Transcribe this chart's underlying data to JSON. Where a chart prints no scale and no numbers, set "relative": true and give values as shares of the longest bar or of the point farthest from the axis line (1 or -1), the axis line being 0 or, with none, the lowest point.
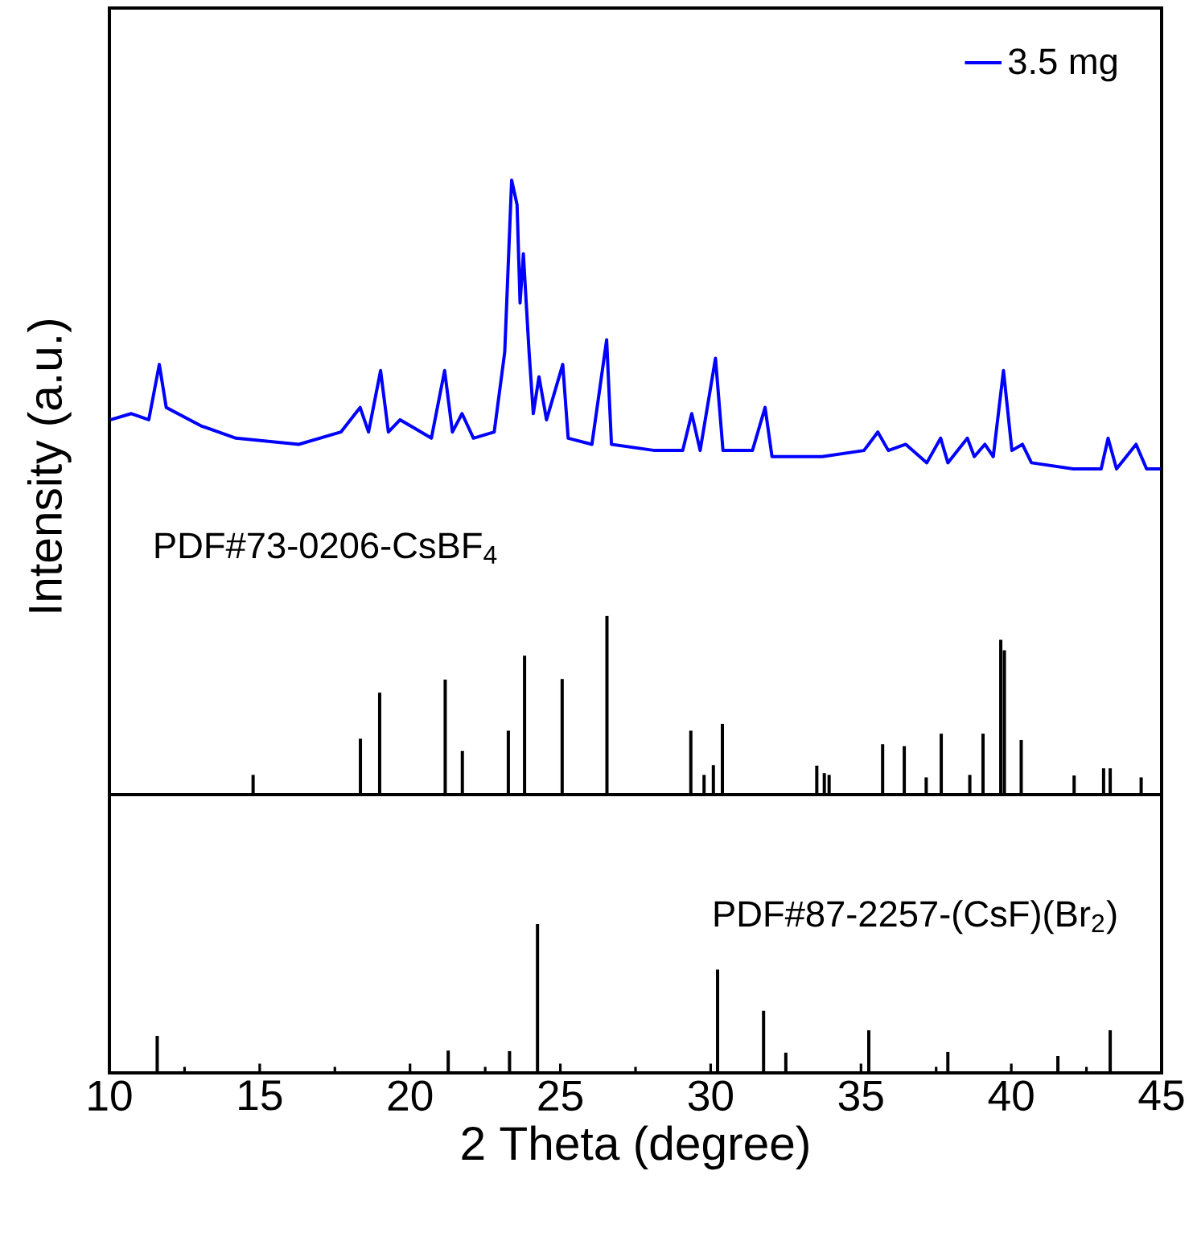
{
  "chart_data": [
    {
      "type": "line",
      "relative": true,
      "xlim": [
        10,
        45
      ],
      "tick_labels": false,
      "ylabel": "Intensity (a.u.)",
      "legend": "top right",
      "series": [
        {
          "name": "3.5 mg",
          "type": "line",
          "color": "#0000ff",
          "x": [
            10.04,
            10.73,
            11.31,
            11.66,
            11.89,
            13.05,
            14.21,
            16.3,
            17.7,
            18.34,
            18.62,
            19.02,
            19.28,
            19.67,
            20.71,
            21.15,
            21.41,
            21.73,
            22.11,
            22.8,
            23.15,
            23.38,
            23.56,
            23.66,
            23.77,
            23.96,
            24.1,
            24.29,
            24.54,
            25.08,
            25.26,
            26.05,
            26.54,
            26.7,
            28.14,
            29.07,
            29.37,
            29.65,
            30.16,
            30.41,
            31.39,
            31.81,
            32.04,
            33.71,
            35.1,
            35.56,
            35.91,
            36.49,
            37.19,
            37.65,
            37.89,
            38.54,
            38.77,
            39.12,
            39.4,
            39.74,
            40.02,
            40.37,
            40.67,
            42.06,
            42.99,
            43.22,
            43.5,
            44.15,
            44.5,
            44.96
          ],
          "values": [
            0.61,
            0.62,
            0.61,
            0.7,
            0.63,
            0.6,
            0.58,
            0.57,
            0.59,
            0.63,
            0.59,
            0.69,
            0.59,
            0.61,
            0.58,
            0.69,
            0.59,
            0.62,
            0.58,
            0.59,
            0.72,
            1.0,
            0.96,
            0.8,
            0.88,
            0.72,
            0.62,
            0.68,
            0.61,
            0.7,
            0.58,
            0.57,
            0.74,
            0.57,
            0.56,
            0.56,
            0.62,
            0.56,
            0.71,
            0.56,
            0.56,
            0.63,
            0.55,
            0.55,
            0.56,
            0.59,
            0.56,
            0.57,
            0.54,
            0.58,
            0.54,
            0.58,
            0.55,
            0.57,
            0.55,
            0.69,
            0.56,
            0.57,
            0.54,
            0.53,
            0.53,
            0.58,
            0.53,
            0.57,
            0.53,
            0.53
          ]
        },
        {
          "name": "PDF#73-0206-CsBF$_{4}$",
          "type": "bar",
          "color": "#000000",
          "x": [
            14.78,
            18.35,
            18.99,
            21.17,
            21.74,
            23.27,
            23.81,
            25.06,
            26.55,
            29.34,
            29.78,
            30.09,
            30.39,
            33.53,
            33.78,
            33.94,
            35.72,
            36.44,
            37.17,
            37.67,
            38.62,
            39.06,
            39.65,
            39.77,
            40.33,
            42.09,
            43.07,
            43.29,
            44.32
          ],
          "values": [
            0.032,
            0.091,
            0.166,
            0.187,
            0.071,
            0.104,
            0.226,
            0.188,
            0.291,
            0.104,
            0.032,
            0.048,
            0.115,
            0.047,
            0.035,
            0.032,
            0.082,
            0.079,
            0.028,
            0.099,
            0.032,
            0.099,
            0.252,
            0.235,
            0.089,
            0.031,
            0.043,
            0.043,
            0.028
          ]
        }
      ]
    },
    {
      "type": "bar",
      "relative": true,
      "xlim": [
        10,
        45
      ],
      "xticks": [
        10,
        15,
        20,
        25,
        30,
        35,
        40,
        45
      ],
      "tick_labels": "x",
      "xlabel": "2 Theta (degree)",
      "series": [
        {
          "name": "PDF#87-2257-(CsF)(Br$_{2}$)",
          "color": "#000000",
          "x": [
            11.59,
            21.27,
            23.31,
            24.24,
            30.23,
            31.76,
            32.5,
            35.26,
            37.89,
            41.55,
            43.29
          ],
          "values": [
            0.249,
            0.15,
            0.146,
            1.0,
            0.695,
            0.418,
            0.136,
            0.286,
            0.141,
            0.113,
            0.286
          ]
        }
      ]
    }
  ]
}
